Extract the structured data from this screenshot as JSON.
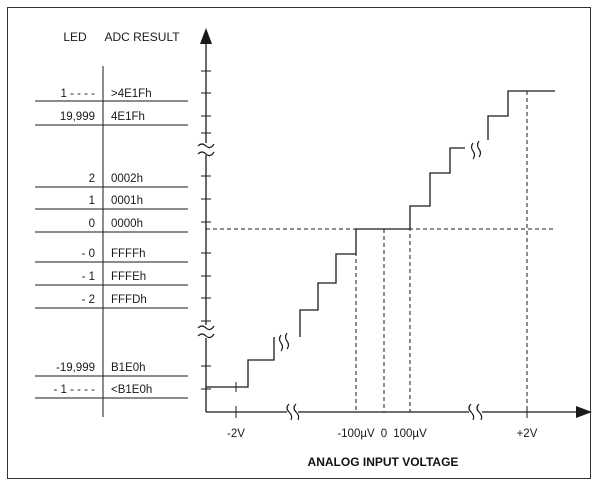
{
  "headers": {
    "led": "LED",
    "adc": "ADC RESULT"
  },
  "table_rows": [
    {
      "led": "1 - - - -",
      "adc": ">4E1Fh"
    },
    {
      "led": "19,999",
      "adc": "4E1Fh"
    },
    {
      "led": "2",
      "adc": "0002h"
    },
    {
      "led": "1",
      "adc": "0001h"
    },
    {
      "led": "0",
      "adc": "0000h"
    },
    {
      "led": "- 0",
      "adc": "FFFFh"
    },
    {
      "led": "- 1",
      "adc": "FFFEh"
    },
    {
      "led": "- 2",
      "adc": "FFFDh"
    },
    {
      "led": "-19,999",
      "adc": "B1E0h"
    },
    {
      "led": "- 1 - - - -",
      "adc": "<B1E0h"
    }
  ],
  "x_ticks": {
    "neg2v": "-2V",
    "neg100uv": "-100µV",
    "zero": "0",
    "pos100uv": "100µV",
    "pos2v": "+2V"
  },
  "x_axis_title": "ANALOG INPUT VOLTAGE",
  "colors": {
    "line": "#1a1a1a",
    "frame": "#333333"
  }
}
